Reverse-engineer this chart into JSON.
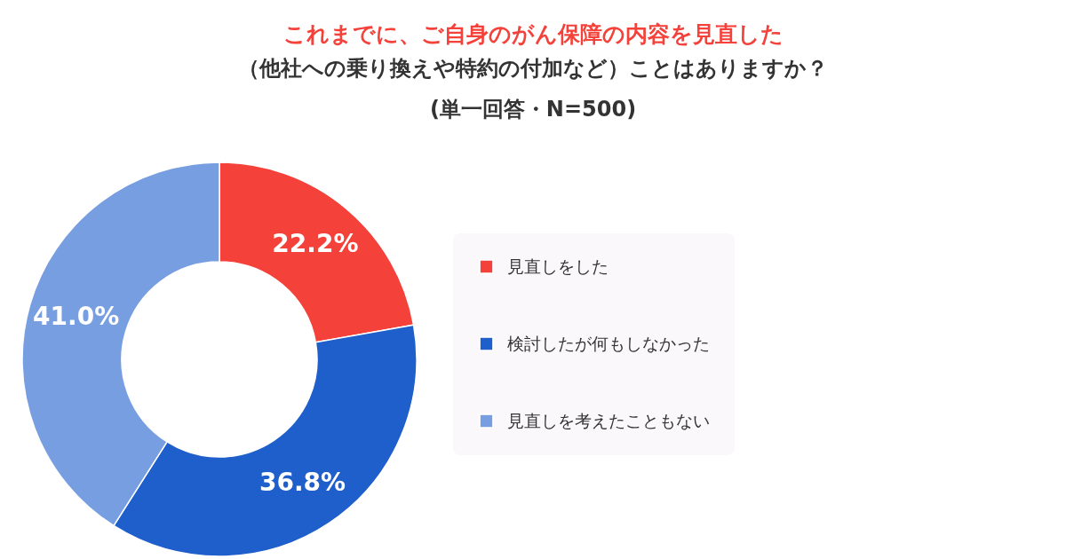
{
  "chart_data": {
    "type": "donut",
    "title": "これまでに、ご自身のがん保障の内容を見直した",
    "subtitle": [
      "（他社への乗り換えや特約の付加など）ことはありますか？",
      "(単一回答・N=500)"
    ],
    "categories": [
      "見直しをした",
      "検討したが何もしなかった",
      "見直しを考えたこともない"
    ],
    "values": [
      22.2,
      36.8,
      41.0
    ],
    "colors": [
      "#f4413a",
      "#1f5fcb",
      "#779ee0"
    ],
    "value_labels": [
      "22.2%",
      "36.8%",
      "41.0%"
    ],
    "legend": "right"
  }
}
